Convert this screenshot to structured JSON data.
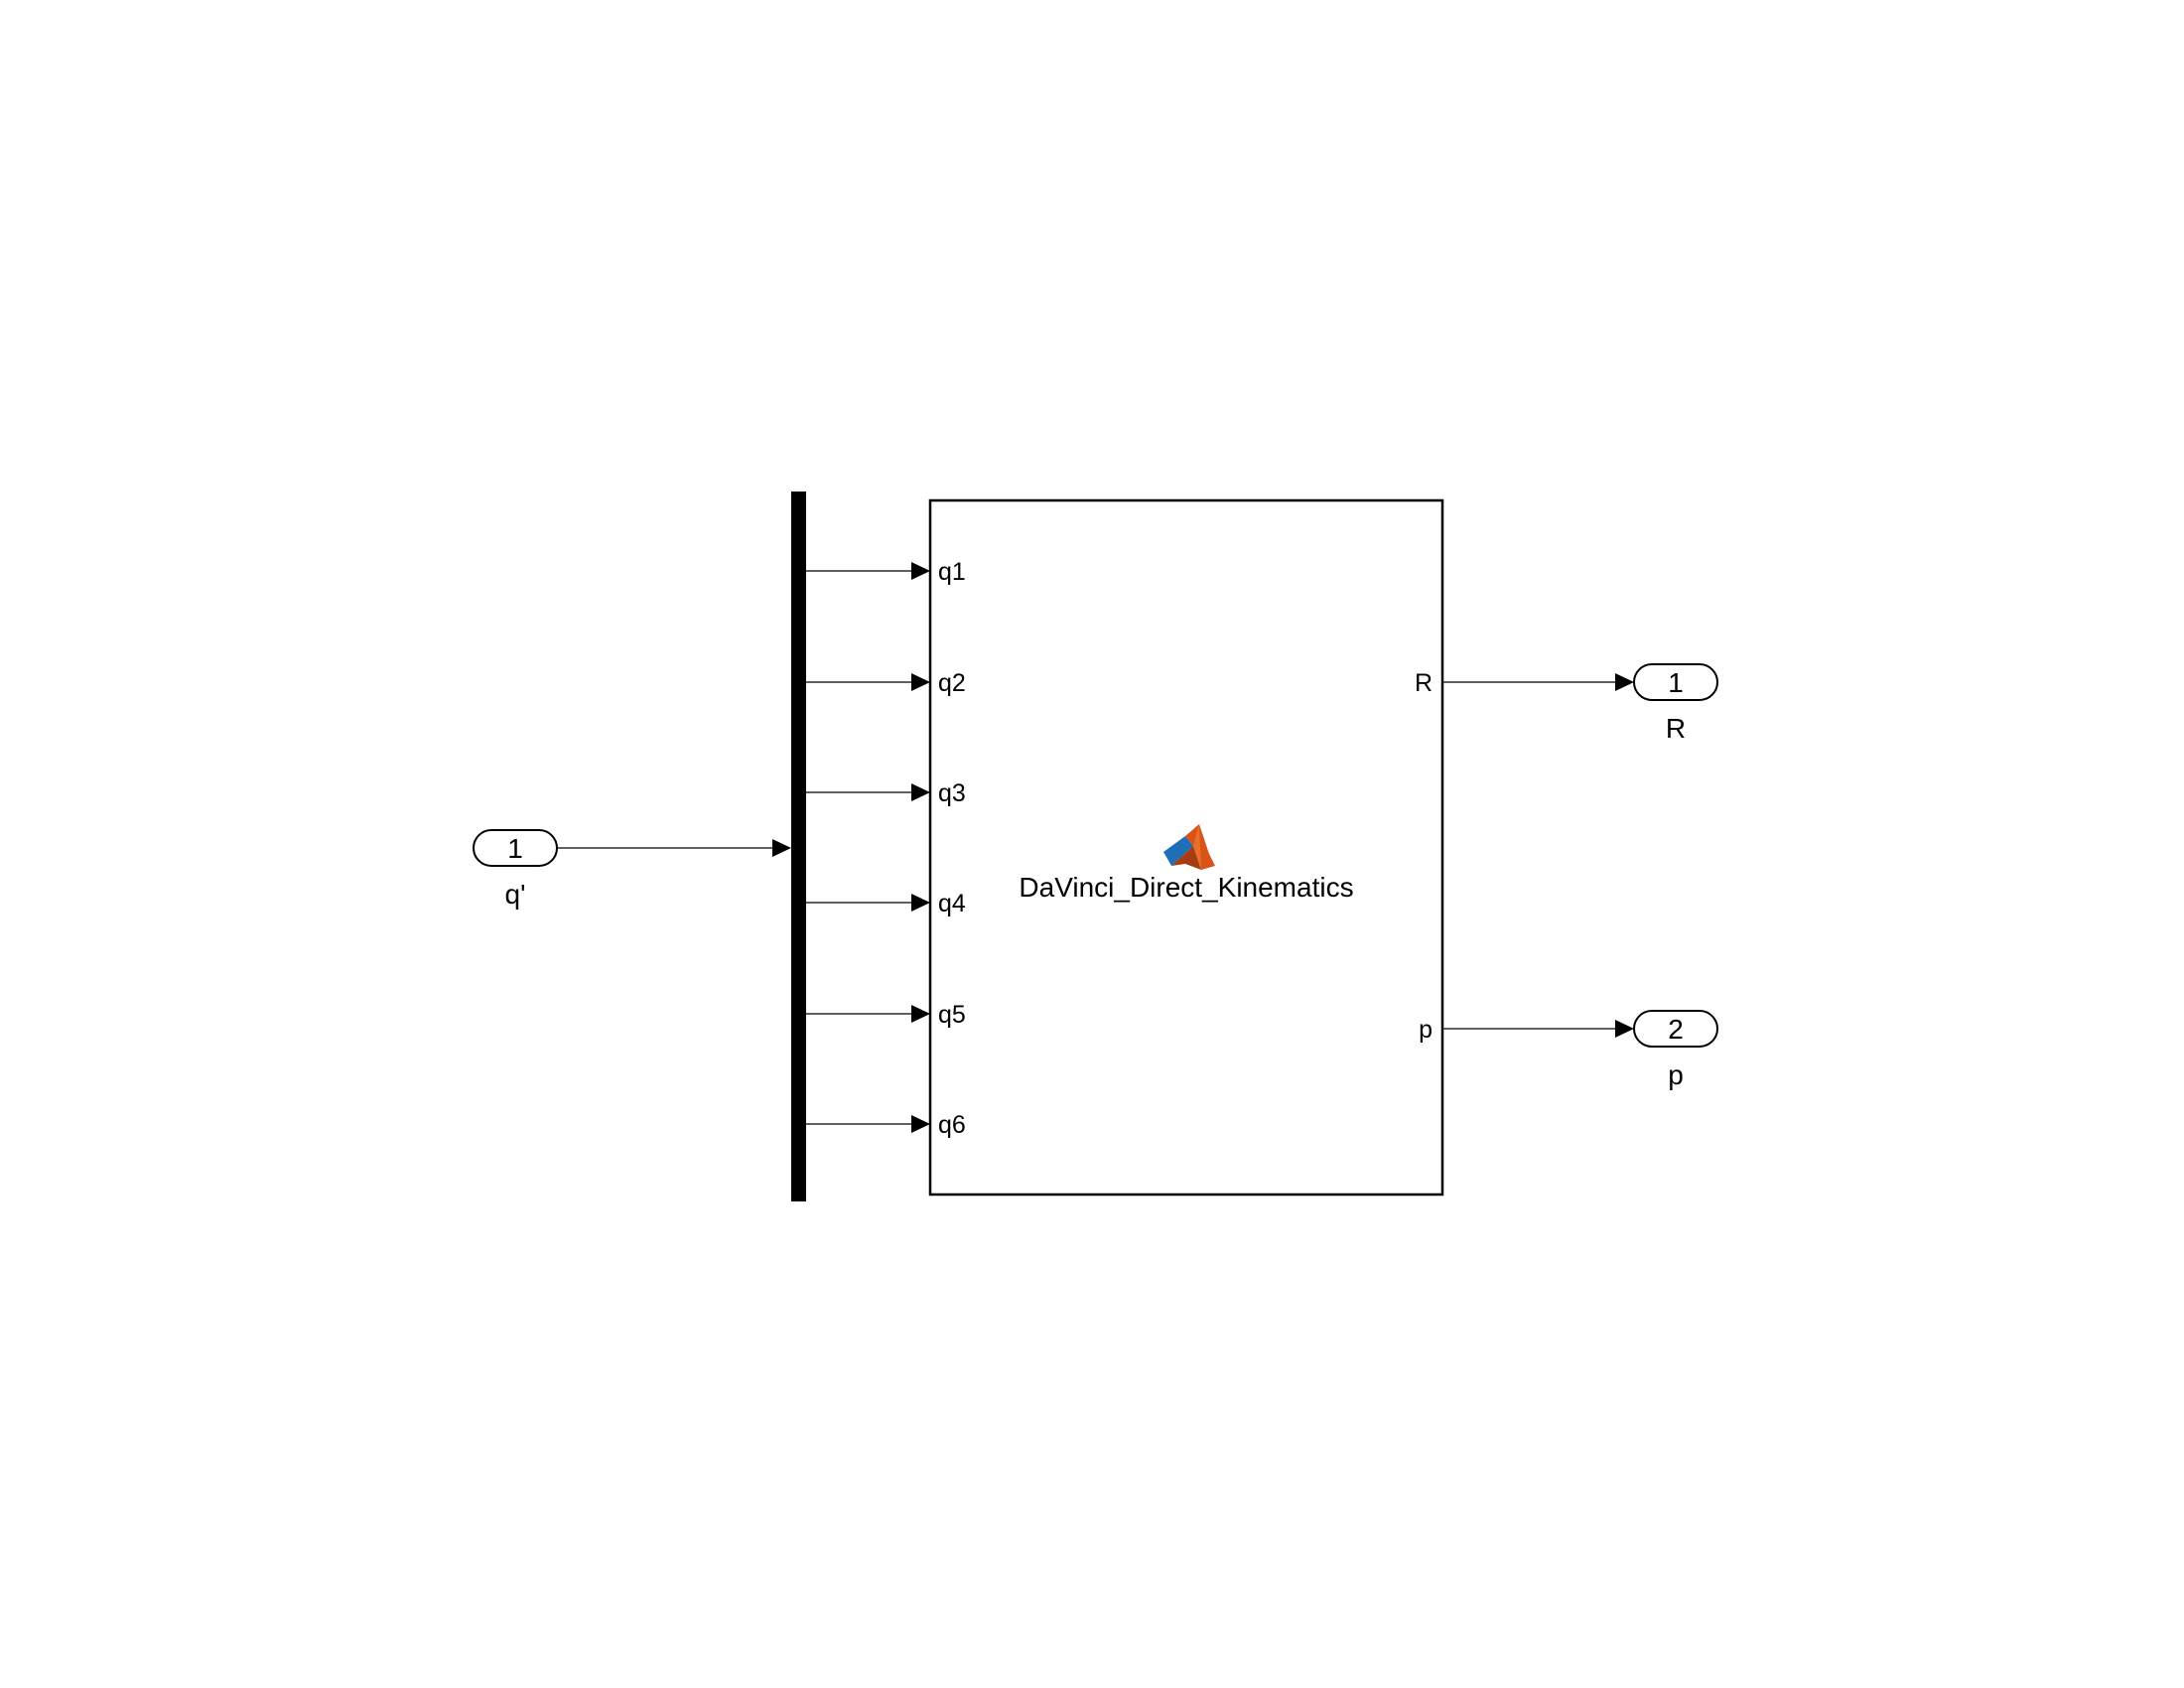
{
  "diagram": {
    "inports": [
      {
        "number": "1",
        "name": "q'"
      }
    ],
    "demux": {
      "outputs": 6
    },
    "function_block": {
      "name": "DaVinci_Direct_Kinematics",
      "icon": "matlab-logo-icon",
      "inputs": [
        "q1",
        "q2",
        "q3",
        "q4",
        "q5",
        "q6"
      ],
      "outputs": [
        "R",
        "p"
      ]
    },
    "outports": [
      {
        "number": "1",
        "name": "R"
      },
      {
        "number": "2",
        "name": "p"
      }
    ],
    "colors": {
      "line": "#000000",
      "background": "#ffffff",
      "logo_orange": "#d95319",
      "logo_blue": "#1e6fb5"
    }
  }
}
